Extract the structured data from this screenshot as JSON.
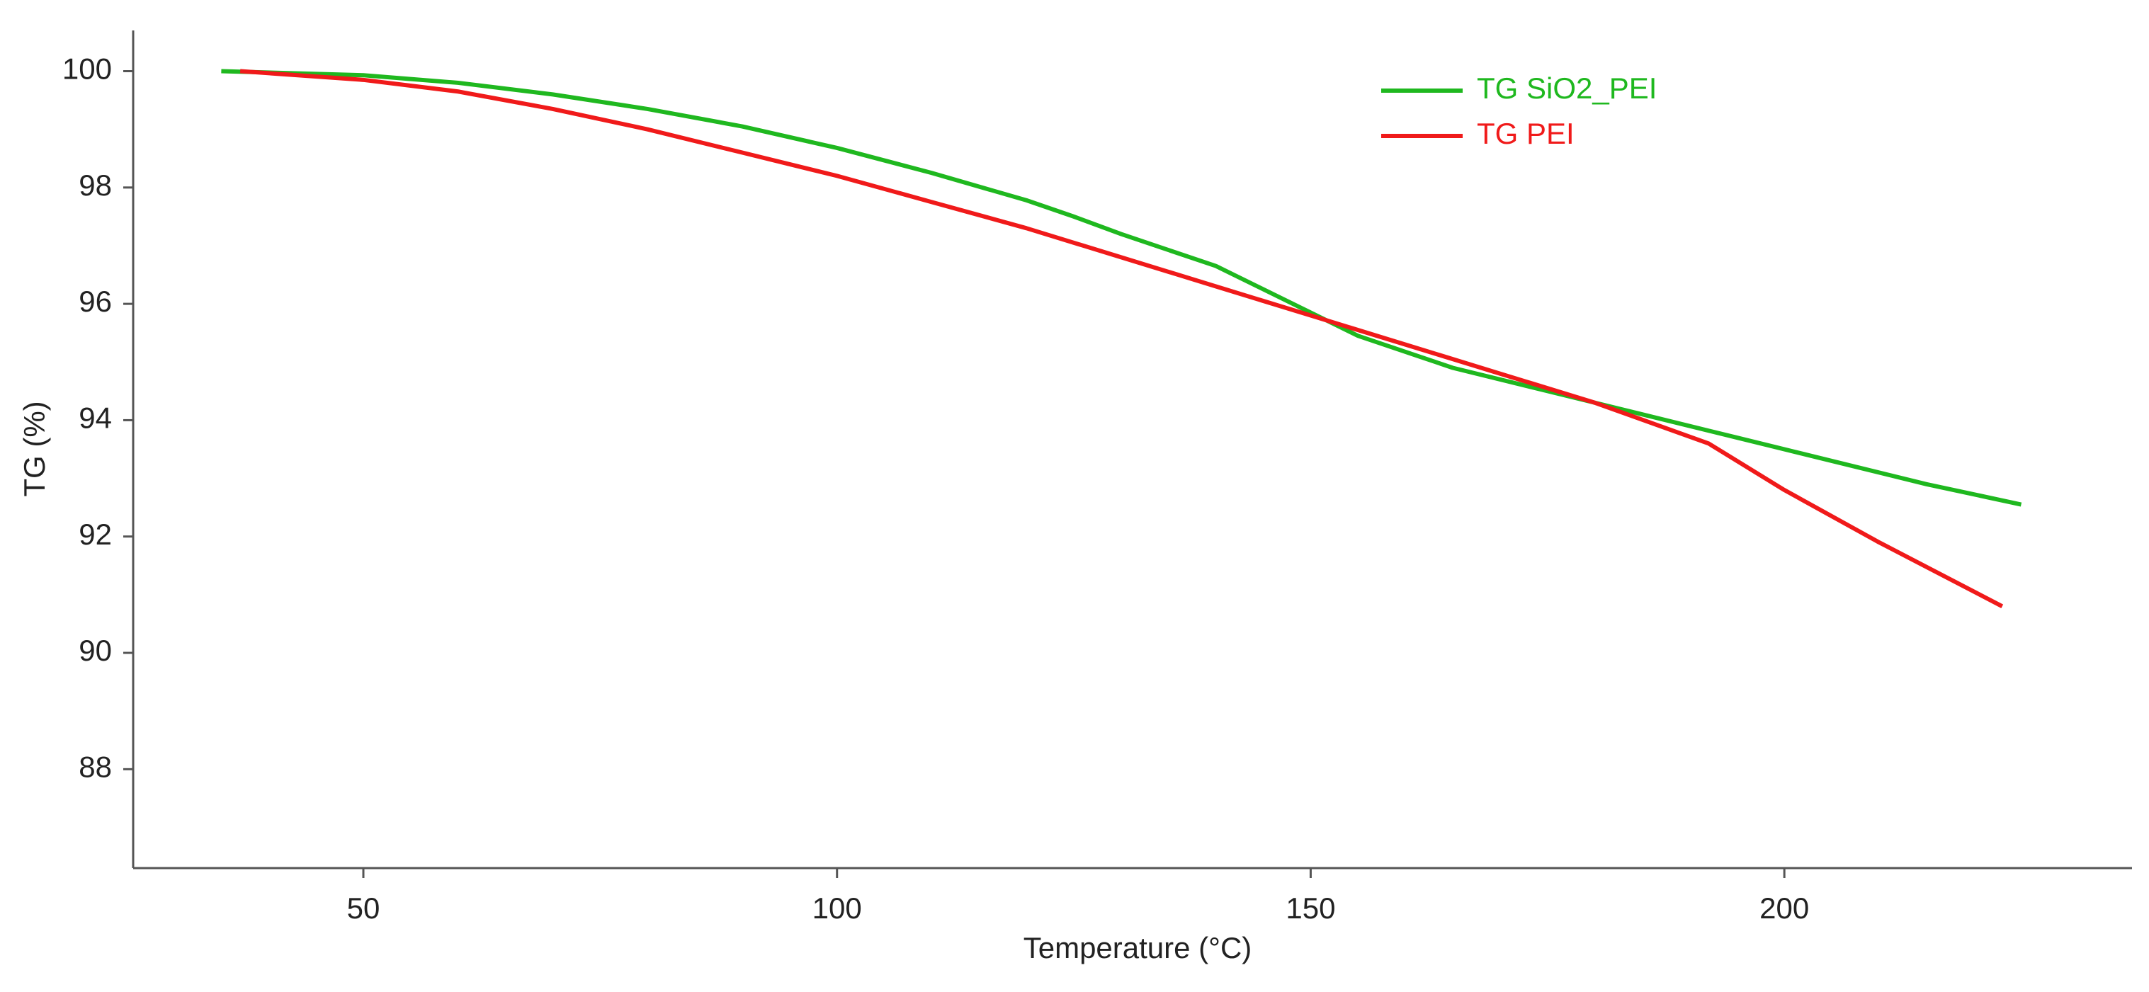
{
  "chart_data": {
    "type": "line",
    "xlabel": "Temperature (°C)",
    "ylabel": "TG (%)",
    "xlim": [
      25.7,
      236.7
    ],
    "ylim": [
      86.3,
      100.7
    ],
    "xticks": [
      50,
      100,
      150,
      200
    ],
    "yticks": [
      88,
      90,
      92,
      94,
      96,
      98,
      100
    ],
    "legend": "top-right",
    "series": [
      {
        "name": "TG SiO2_PEI",
        "color": "#1fb81f",
        "x": [
          35,
          50,
          60,
          70,
          80,
          90,
          100,
          110,
          120,
          125,
          130,
          140,
          150,
          155,
          165,
          175,
          185,
          195,
          205,
          215,
          225
        ],
        "values": [
          100,
          99.93,
          99.8,
          99.6,
          99.35,
          99.05,
          98.68,
          98.25,
          97.78,
          97.5,
          97.2,
          96.65,
          95.85,
          95.45,
          94.9,
          94.5,
          94.1,
          93.7,
          93.3,
          92.9,
          92.55
        ]
      },
      {
        "name": "TG PEI",
        "color": "#f01a1a",
        "x": [
          37,
          50,
          60,
          70,
          80,
          90,
          100,
          110,
          120,
          130,
          140,
          150,
          160,
          170,
          180,
          192,
          200,
          210,
          223
        ],
        "values": [
          100,
          99.85,
          99.65,
          99.35,
          99.0,
          98.6,
          98.2,
          97.75,
          97.3,
          96.8,
          96.3,
          95.8,
          95.3,
          94.8,
          94.3,
          93.6,
          92.8,
          91.9,
          90.8
        ]
      }
    ]
  }
}
